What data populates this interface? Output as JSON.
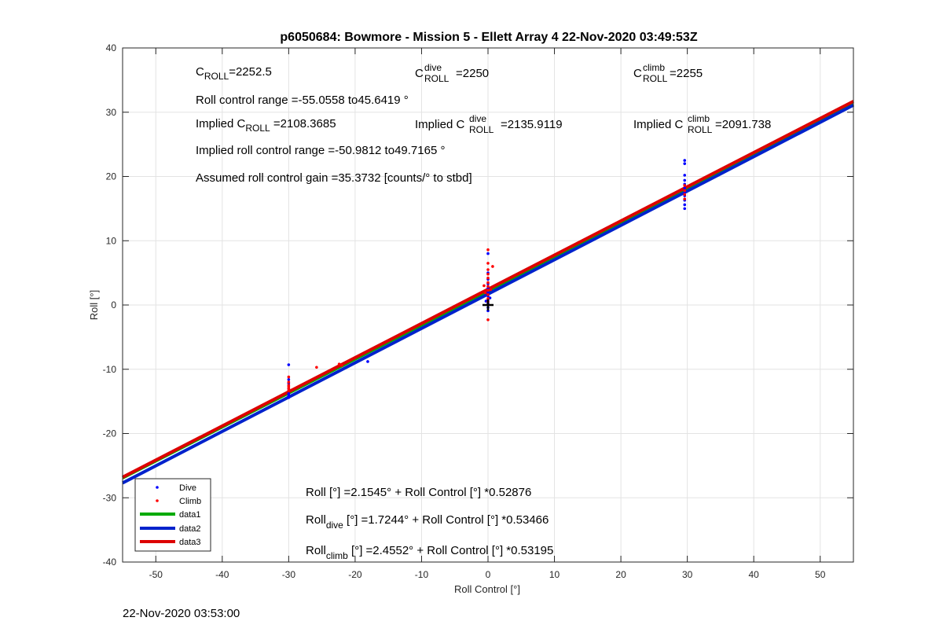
{
  "footer_timestamp": "22-Nov-2020 03:53:00",
  "chart_data": {
    "type": "scatter",
    "title": "p6050684: Bowmore - Mission 5 - Ellett Array 4 22-Nov-2020 03:49:53Z",
    "xlabel": "Roll Control [°]",
    "ylabel": "Roll [°]",
    "xlim": [
      -55,
      55
    ],
    "ylim": [
      -40,
      40
    ],
    "xticks": [
      -50,
      -40,
      -30,
      -20,
      -10,
      0,
      10,
      20,
      30,
      40,
      50
    ],
    "yticks": [
      -40,
      -30,
      -20,
      -10,
      0,
      10,
      20,
      30,
      40
    ],
    "grid": true,
    "legend_position": "bottom-left",
    "legend": [
      "Dive",
      "Climb",
      "data1",
      "data2",
      "data3"
    ],
    "colors": {
      "dive": "#0000ff",
      "climb": "#ff0000",
      "data1": "#00aa00",
      "data2": "#0022cc",
      "data3": "#dd0000",
      "cross": "#000000"
    },
    "series": [
      {
        "name": "Dive",
        "marker": "dot",
        "color": "#0000ff",
        "points": [
          [
            -30,
            -9.3
          ],
          [
            -30,
            -11.6
          ],
          [
            -30,
            -12.2
          ],
          [
            -30,
            -13.0
          ],
          [
            -30,
            -13.8
          ],
          [
            -30,
            -14.4
          ],
          [
            -30,
            -14.1
          ],
          [
            -18.1,
            -8.8
          ],
          [
            0,
            -0.9
          ],
          [
            0,
            -0.4
          ],
          [
            0,
            0.2
          ],
          [
            0,
            0.8
          ],
          [
            0,
            1.4
          ],
          [
            0,
            2.0
          ],
          [
            0,
            2.6
          ],
          [
            0,
            3.3
          ],
          [
            0,
            4.0
          ],
          [
            0,
            5.0
          ],
          [
            0,
            8.0
          ],
          [
            0.3,
            1.1
          ],
          [
            -0.3,
            0.6
          ],
          [
            29.6,
            15.0
          ],
          [
            29.6,
            15.6
          ],
          [
            29.6,
            16.3
          ],
          [
            29.6,
            17.0
          ],
          [
            29.6,
            17.6
          ],
          [
            29.6,
            18.2
          ],
          [
            29.6,
            18.8
          ],
          [
            29.6,
            19.4
          ],
          [
            29.6,
            20.2
          ],
          [
            29.6,
            22.0
          ],
          [
            29.6,
            22.5
          ]
        ]
      },
      {
        "name": "Climb",
        "marker": "dot",
        "color": "#ff0000",
        "points": [
          [
            -30,
            -11.2
          ],
          [
            -30,
            -12.0
          ],
          [
            -30,
            -12.5
          ],
          [
            -30,
            -13.0
          ],
          [
            -30,
            -13.3
          ],
          [
            -30,
            -12.7
          ],
          [
            -25.8,
            -9.7
          ],
          [
            -22.4,
            -9.2
          ],
          [
            -22.0,
            -9.4
          ],
          [
            0,
            -2.3
          ],
          [
            0,
            0.5
          ],
          [
            0,
            1.0
          ],
          [
            0,
            1.6
          ],
          [
            0,
            2.3
          ],
          [
            0,
            2.9
          ],
          [
            0,
            3.5
          ],
          [
            0,
            4.2
          ],
          [
            0,
            4.8
          ],
          [
            0,
            5.5
          ],
          [
            0,
            6.5
          ],
          [
            0,
            8.6
          ],
          [
            -0.4,
            1.9
          ],
          [
            0.4,
            2.4
          ],
          [
            0.7,
            6.0
          ],
          [
            -0.6,
            3.0
          ],
          [
            29.6,
            16.5
          ],
          [
            29.6,
            17.2
          ],
          [
            29.6,
            17.8
          ],
          [
            29.6,
            18.6
          ]
        ]
      },
      {
        "name": "data1",
        "type": "line",
        "color": "#00aa00",
        "x": [
          -55,
          55
        ],
        "y": [
          -26.9,
          31.2
        ]
      },
      {
        "name": "data2",
        "type": "line",
        "color": "#0022cc",
        "x": [
          -55,
          55
        ],
        "y": [
          -27.7,
          31.1
        ]
      },
      {
        "name": "data3",
        "type": "line",
        "color": "#dd0000",
        "x": [
          -55,
          55
        ],
        "y": [
          -26.8,
          31.7
        ]
      }
    ],
    "cross_marker": {
      "x": 0,
      "y": 0
    },
    "annotations": {
      "c_roll": {
        "base": "C",
        "sub": "ROLL",
        "value": "=2252.5"
      },
      "c_roll_dive": {
        "base": "C",
        "sup": "dive",
        "sub": "ROLL",
        "value": " =2250"
      },
      "c_roll_climb": {
        "base": "C",
        "sup": "climb",
        "sub": "ROLL",
        "value": " =2255"
      },
      "roll_range": "Roll control range =-55.0558 to45.6419 °",
      "implied_c_roll": {
        "prefix": "Implied C",
        "sub": "ROLL",
        "value": " =2108.3685"
      },
      "implied_c_roll_dive": {
        "prefix": "Implied C",
        "sup": "dive",
        "sub": "ROLL",
        "value": " =2135.9119"
      },
      "implied_c_roll_climb": {
        "prefix": "Implied C",
        "sup": "climb",
        "sub": "ROLL",
        "value": " =2091.738"
      },
      "implied_range": "Implied roll control range =-50.9812 to49.7165 °",
      "gain": "Assumed roll control gain =35.3732 [counts/° to stbd]",
      "fit_all": "Roll [°] =2.1545° + Roll Control [°] *0.52876",
      "fit_dive": {
        "base": "Roll",
        "sub": "dive",
        "rest": " [°] =1.7244° + Roll Control [°] *0.53466"
      },
      "fit_climb": {
        "base": "Roll",
        "sub": "climb",
        "rest": " [°] =2.4552° + Roll Control [°] *0.53195"
      }
    }
  }
}
